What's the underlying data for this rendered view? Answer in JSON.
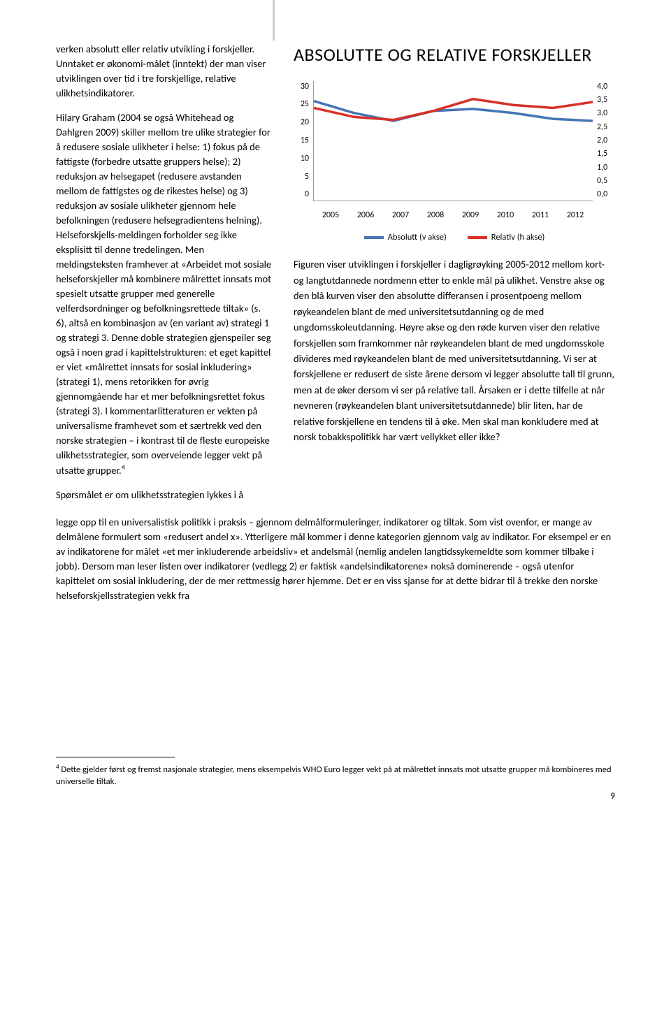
{
  "left_col": {
    "para1": "verken absolutt eller relativ utvikling i forskjeller. Unntaket er økonomi-målet (inntekt) der man viser utviklingen over tid i tre forskjellige, relative ulikhetsindikatorer.",
    "para2_a": "Hilary Graham (2004 se også Whitehead og Dahlgren 2009) skiller mellom tre ulike strategier for å redusere sosiale ulikheter i helse: 1) fokus på de fattigste (forbedre utsatte gruppers helse); 2) reduksjon av helsegapet (redusere avstanden mellom de fattigstes og de rikestes helse) og 3) reduksjon av sosiale ulikheter gjennom hele befolkningen (redusere helsegradientens helning). Helseforskjells-meldingen forholder seg ikke eksplisitt til denne tredelingen. Men meldingsteksten framhever at «Arbeidet mot sosiale helseforskjeller må kombinere målrettet innsats mot spesielt utsatte grupper med generelle velferdsordninger og befolkningsrettede tiltak» (s. 6), altså en kombinasjon av (en variant av) strategi 1 og strategi 3. Denne doble strategien gjenspeiler seg også i noen grad i kapittelstrukturen: et eget kapittel er viet «målrettet innsats for sosial inkludering» (strategi 1), mens retorikken for øvrig gjennomgående har et mer befolkningsrettet fokus (strategi 3). I kommentarlitteraturen er vekten på universalisme framhevet som et særtrekk ved den norske strategien – i kontrast til de fleste europeiske ulikhetsstrategier, som overveiende legger vekt på utsatte grupper.",
    "para2_sup": "4",
    "para3_start": "Spørsmålet er om ulikhetsstrategien lykkes i å"
  },
  "right_col": {
    "title": "ABSOLUTTE OG RELATIVE FORSKJELLER",
    "caption": "Figuren viser utviklingen i forskjeller i dagligrøyking 2005-2012 mellom kort- og langtutdannede nordmenn etter to enkle mål på ulikhet. Venstre akse og den blå kurven viser den absolutte differansen i prosentpoeng mellom røykeandelen blant de med universitetsutdanning og de med ungdomsskoleutdanning. Høyre akse og den røde kurven viser den relative forskjellen som framkommer når røykeandelen blant de med ungdomsskole divideres med røykeandelen blant de med universitetsutdanning. Vi ser at forskjellene er redusert de siste årene dersom vi legger absolutte tall til grunn, men at de øker dersom vi ser på relative tall. Årsaken er i dette tilfelle at når nevneren (røykeandelen blant universitetsutdannede) blir liten, har de relative forskjellene en tendens til å øke. Men skal man konkludere med at norsk tobakkspolitikk har vært vellykket eller ikke?"
  },
  "chart": {
    "type": "line",
    "categories": [
      "2005",
      "2006",
      "2007",
      "2008",
      "2009",
      "2010",
      "2011",
      "2012"
    ],
    "y_left_ticks": [
      "30",
      "25",
      "20",
      "15",
      "10",
      "5",
      "0"
    ],
    "y_right_ticks": [
      "4,0",
      "3,5",
      "3,0",
      "2,5",
      "2,0",
      "1,5",
      "1,0",
      "0,5",
      "0,0"
    ],
    "series": {
      "absolutt": {
        "label": "Absolutt (v akse)",
        "color": "#4575b4",
        "values_left_axis": [
          25,
          22,
          20,
          22.5,
          23,
          22,
          20.5,
          20
        ],
        "ylim": [
          0,
          30
        ]
      },
      "relativ": {
        "label": "Relativ (h akse)",
        "color": "#d73027",
        "values_right_axis": [
          3.1,
          2.8,
          2.7,
          3.0,
          3.4,
          3.2,
          3.1,
          3.3
        ],
        "ylim": [
          0,
          4.0
        ]
      }
    },
    "line_width": 3.5,
    "background_color": "#ffffff"
  },
  "full_width": {
    "para": "legge opp til en universalistisk politikk i praksis – gjennom delmålformuleringer, indikatorer og tiltak. Som vist ovenfor, er mange av delmålene formulert som «redusert andel x». Ytterligere mål kommer i denne kategorien gjennom valg av indikator. For eksempel er en av indikatorene for målet «et mer inkluderende arbeidsliv» et andelsmål (nemlig andelen langtidssykemeldte som kommer tilbake i jobb). Dersom man leser listen over indikatorer (vedlegg 2) er faktisk «andelsindikatorene» nokså dominerende – også utenfor kapittelet om sosial inkludering, der de mer rettmessig hører hjemme. Det er en viss sjanse for at dette bidrar til å trekke den norske helseforskjellsstrategien vekk fra"
  },
  "footnote": {
    "num": "4",
    "text": " Dette gjelder først og fremst nasjonale strategier, mens eksempelvis WHO Euro legger vekt på at målrettet innsats mot utsatte grupper må kombineres med universelle tiltak."
  },
  "page_number": "9"
}
